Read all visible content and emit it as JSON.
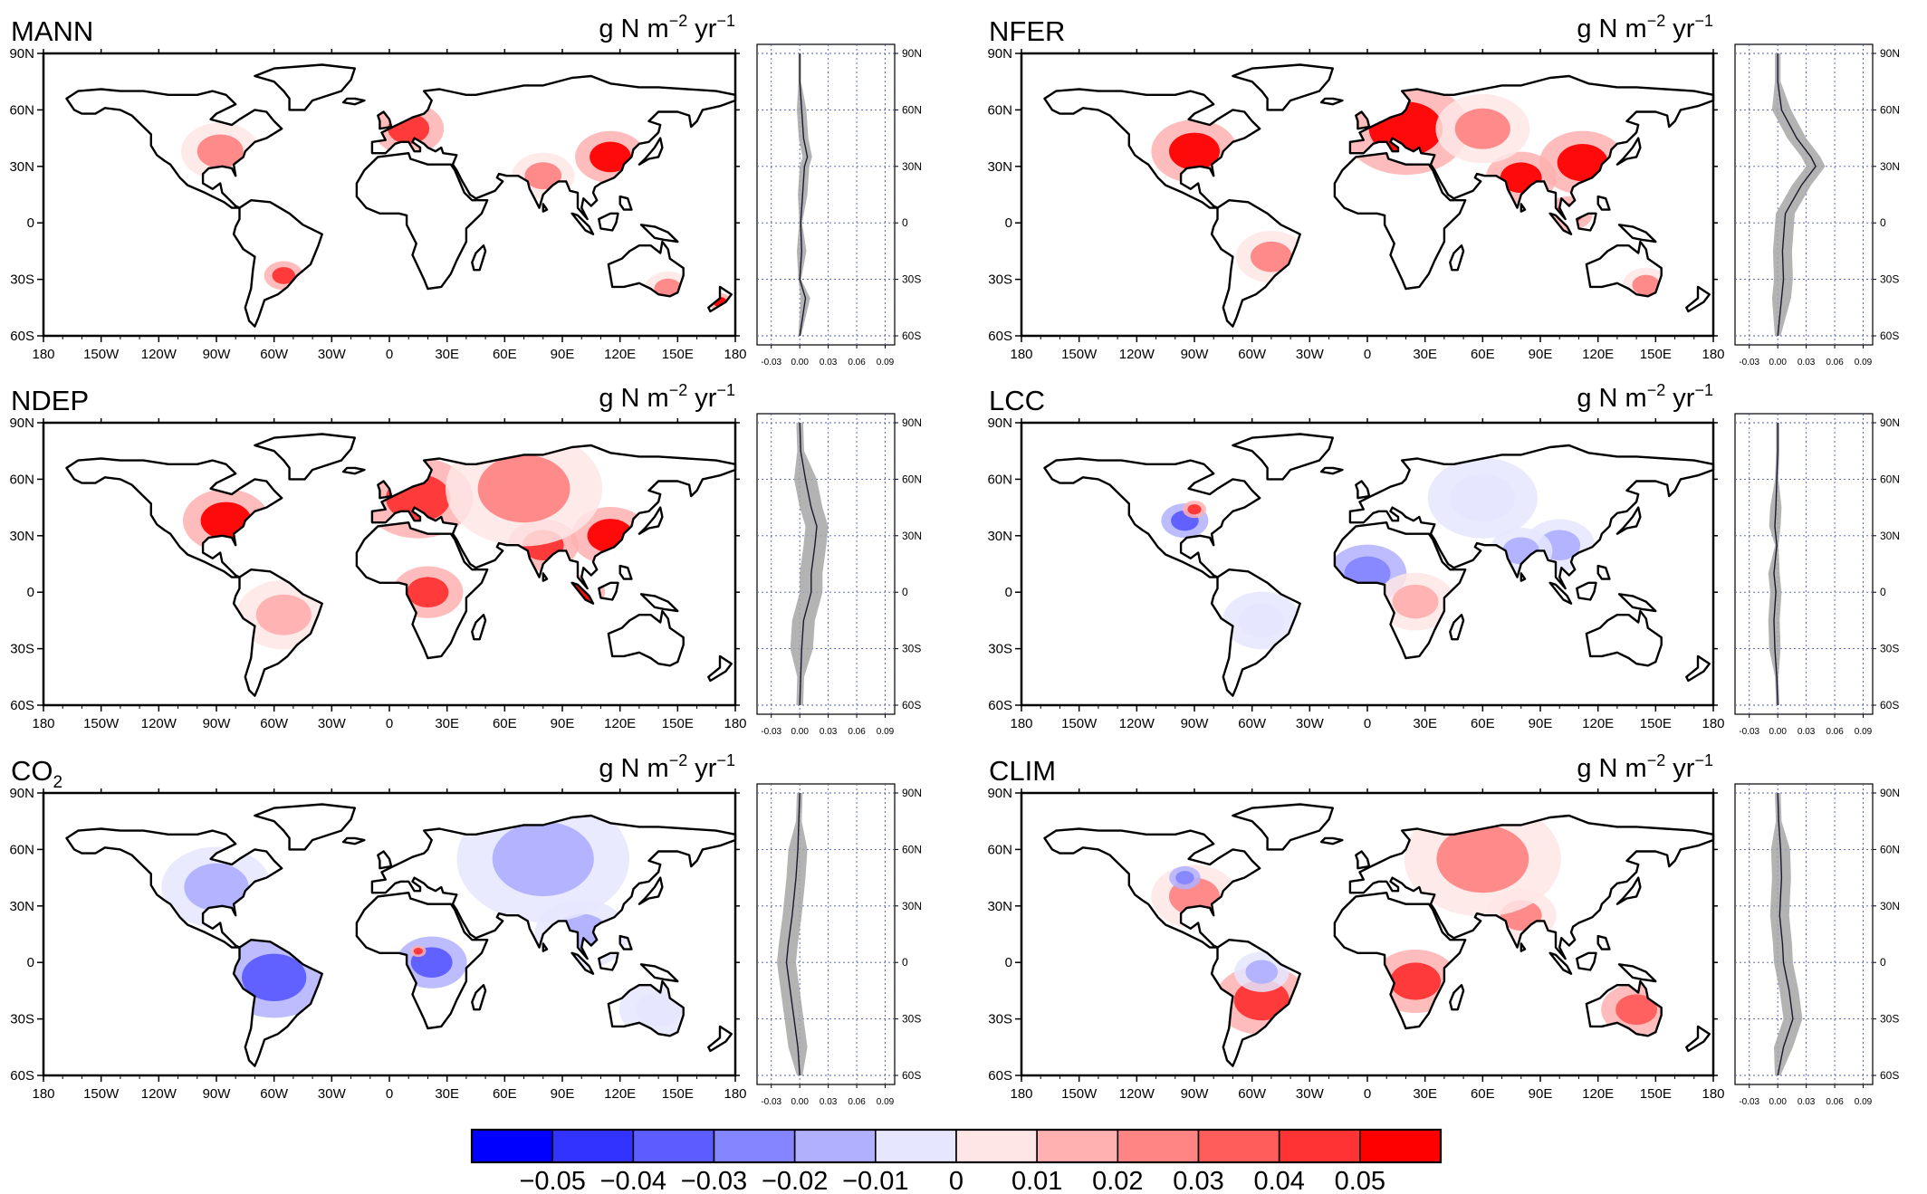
{
  "units": {
    "base": "g N m",
    "exp1": "−2",
    "mid": " yr",
    "exp2": "−1"
  },
  "axes": {
    "lon_ticks": [
      "180",
      "150W",
      "120W",
      "90W",
      "60W",
      "30W",
      "0",
      "30E",
      "60E",
      "90E",
      "120E",
      "150E",
      "180"
    ],
    "lat_ticks": [
      "90N",
      "60N",
      "30N",
      "0",
      "30S",
      "60S"
    ],
    "profile_x_ticks": [
      "-0.03",
      "0.00",
      "0.03",
      "0.06",
      "0.09"
    ],
    "profile_lat_ticks": [
      "90N",
      "60N",
      "30N",
      "0",
      "30S",
      "60S"
    ]
  },
  "colorbar": {
    "labels": [
      "−0.05",
      "−0.04",
      "−0.03",
      "−0.02",
      "−0.01",
      "0",
      "0.01",
      "0.02",
      "0.03",
      "0.04",
      "0.05"
    ],
    "colors": [
      "#0000ff",
      "#3333ff",
      "#5c5cff",
      "#8585ff",
      "#b0b0ff",
      "#e6e6ff",
      "#ffe6e6",
      "#ffb0b0",
      "#ff8585",
      "#ff5c5c",
      "#ff3333",
      "#ff0000"
    ]
  },
  "colors": {
    "increase": "#ff0000",
    "decrease": "#0000ff",
    "coast": "#000000",
    "profile_band": "#a6a6a6"
  },
  "chart_data": [
    {
      "type": "heatmap",
      "title": "MANN",
      "subscript": "",
      "xlim": [
        -180,
        180
      ],
      "ylim": [
        -60,
        90
      ],
      "hotspots": [
        {
          "lon": 115,
          "lat": 35,
          "value": 0.05,
          "spread": 9
        },
        {
          "lon": 10,
          "lat": 50,
          "value": 0.04,
          "spread": 9
        },
        {
          "lon": -88,
          "lat": 38,
          "value": 0.02,
          "spread": 10
        },
        {
          "lon": -55,
          "lat": -28,
          "value": 0.04,
          "spread": 5
        },
        {
          "lon": 80,
          "lat": 25,
          "value": 0.02,
          "spread": 8
        },
        {
          "lon": 145,
          "lat": -35,
          "value": 0.02,
          "spread": 6
        },
        {
          "lon": 172,
          "lat": -42,
          "value": 0.05,
          "spread": 3
        }
      ],
      "profile": {
        "x": [
          0.0,
          0.0,
          0.002,
          0.004,
          0.008,
          0.005,
          0.003,
          0.001,
          0.002,
          0.0,
          0.006,
          0.0
        ],
        "lat": [
          90,
          75,
          60,
          45,
          35,
          30,
          15,
          0,
          -15,
          -30,
          -40,
          -60
        ],
        "band_width": 0.005
      }
    },
    {
      "type": "heatmap",
      "title": "NFER",
      "subscript": "",
      "xlim": [
        -180,
        180
      ],
      "ylim": [
        -60,
        90
      ],
      "hotspots": [
        {
          "lon": 112,
          "lat": 32,
          "value": 0.05,
          "spread": 11
        },
        {
          "lon": 80,
          "lat": 24,
          "value": 0.05,
          "spread": 9
        },
        {
          "lon": 20,
          "lat": 50,
          "value": 0.05,
          "spread": 16
        },
        {
          "lon": -90,
          "lat": 38,
          "value": 0.05,
          "spread": 11
        },
        {
          "lon": 105,
          "lat": 5,
          "value": 0.04,
          "spread": 6
        },
        {
          "lon": -50,
          "lat": -18,
          "value": 0.02,
          "spread": 9
        },
        {
          "lon": 145,
          "lat": -33,
          "value": 0.02,
          "spread": 6
        },
        {
          "lon": 60,
          "lat": 50,
          "value": 0.02,
          "spread": 12
        }
      ],
      "profile": {
        "x": [
          0.0,
          0.0,
          0.004,
          0.02,
          0.035,
          0.04,
          0.025,
          0.008,
          0.005,
          0.006,
          0.004,
          0.0
        ],
        "lat": [
          90,
          75,
          60,
          45,
          35,
          30,
          20,
          5,
          -15,
          -30,
          -40,
          -60
        ],
        "band_width": 0.01
      }
    },
    {
      "type": "heatmap",
      "title": "NDEP",
      "subscript": "",
      "xlim": [
        -180,
        180
      ],
      "ylim": [
        -60,
        90
      ],
      "hotspots": [
        {
          "lon": -85,
          "lat": 38,
          "value": 0.05,
          "spread": 11
        },
        {
          "lon": 15,
          "lat": 50,
          "value": 0.04,
          "spread": 14
        },
        {
          "lon": 115,
          "lat": 30,
          "value": 0.05,
          "spread": 10
        },
        {
          "lon": 80,
          "lat": 25,
          "value": 0.04,
          "spread": 9
        },
        {
          "lon": 100,
          "lat": 0,
          "value": 0.05,
          "spread": 6
        },
        {
          "lon": 20,
          "lat": 0,
          "value": 0.04,
          "spread": 9
        },
        {
          "lon": 70,
          "lat": 55,
          "value": 0.02,
          "spread": 20
        },
        {
          "lon": -55,
          "lat": -12,
          "value": 0.01,
          "spread": 12
        }
      ],
      "profile": {
        "x": [
          0.0,
          0.001,
          0.006,
          0.012,
          0.018,
          0.016,
          0.012,
          0.012,
          0.004,
          0.002,
          0.001,
          0.0
        ],
        "lat": [
          90,
          75,
          60,
          45,
          35,
          25,
          10,
          0,
          -15,
          -30,
          -45,
          -60
        ],
        "band_width": 0.012
      }
    },
    {
      "type": "heatmap",
      "title": "LCC",
      "subscript": "",
      "xlim": [
        -180,
        180
      ],
      "ylim": [
        -60,
        90
      ],
      "hotspots": [
        {
          "lon": -95,
          "lat": 38,
          "value": -0.04,
          "spread": 6
        },
        {
          "lon": -90,
          "lat": 44,
          "value": 0.04,
          "spread": 3
        },
        {
          "lon": 0,
          "lat": 10,
          "value": -0.03,
          "spread": 10
        },
        {
          "lon": 100,
          "lat": 25,
          "value": -0.02,
          "spread": 9
        },
        {
          "lon": 80,
          "lat": 22,
          "value": -0.02,
          "spread": 8
        },
        {
          "lon": -55,
          "lat": -15,
          "value": -0.01,
          "spread": 10
        },
        {
          "lon": 60,
          "lat": 50,
          "value": -0.01,
          "spread": 14
        },
        {
          "lon": 25,
          "lat": -5,
          "value": 0.01,
          "spread": 10
        }
      ],
      "profile": {
        "x": [
          0.0,
          0.0,
          -0.001,
          -0.002,
          -0.003,
          -0.001,
          -0.004,
          -0.002,
          -0.004,
          -0.003,
          -0.001,
          0.0
        ],
        "lat": [
          90,
          75,
          60,
          45,
          35,
          25,
          10,
          0,
          -15,
          -30,
          -45,
          -60
        ],
        "band_width": 0.006
      }
    },
    {
      "type": "heatmap",
      "title": "CO",
      "subscript": "2",
      "xlim": [
        -180,
        180
      ],
      "ylim": [
        -60,
        90
      ],
      "hotspots": [
        {
          "lon": -60,
          "lat": -8,
          "value": -0.04,
          "spread": 14
        },
        {
          "lon": 22,
          "lat": 0,
          "value": -0.04,
          "spread": 9
        },
        {
          "lon": 100,
          "lat": 15,
          "value": -0.02,
          "spread": 12
        },
        {
          "lon": 80,
          "lat": 55,
          "value": -0.015,
          "spread": 22
        },
        {
          "lon": -90,
          "lat": 40,
          "value": -0.015,
          "spread": 14
        },
        {
          "lon": 140,
          "lat": -25,
          "value": -0.01,
          "spread": 10
        },
        {
          "lon": 15,
          "lat": 6,
          "value": 0.04,
          "spread": 2
        }
      ],
      "profile": {
        "x": [
          0.0,
          -0.001,
          -0.002,
          -0.004,
          -0.006,
          -0.008,
          -0.012,
          -0.014,
          -0.01,
          -0.006,
          -0.002,
          0.0
        ],
        "lat": [
          90,
          75,
          60,
          45,
          35,
          25,
          10,
          0,
          -15,
          -30,
          -45,
          -60
        ],
        "band_width": 0.01
      }
    },
    {
      "type": "heatmap",
      "title": "CLIM",
      "subscript": "",
      "xlim": [
        -180,
        180
      ],
      "ylim": [
        -60,
        90
      ],
      "hotspots": [
        {
          "lon": -55,
          "lat": -20,
          "value": 0.04,
          "spread": 12
        },
        {
          "lon": 25,
          "lat": -10,
          "value": 0.04,
          "spread": 11
        },
        {
          "lon": 140,
          "lat": -25,
          "value": 0.03,
          "spread": 9
        },
        {
          "lon": -90,
          "lat": 35,
          "value": 0.02,
          "spread": 11
        },
        {
          "lon": -95,
          "lat": 45,
          "value": -0.03,
          "spread": 4
        },
        {
          "lon": 80,
          "lat": 25,
          "value": 0.02,
          "spread": 9
        },
        {
          "lon": 60,
          "lat": 55,
          "value": 0.02,
          "spread": 20
        },
        {
          "lon": -55,
          "lat": -5,
          "value": -0.02,
          "spread": 7
        }
      ],
      "profile": {
        "x": [
          0.0,
          0.001,
          0.003,
          0.004,
          0.003,
          0.002,
          0.005,
          0.006,
          0.012,
          0.016,
          0.006,
          0.0
        ],
        "lat": [
          90,
          75,
          60,
          45,
          35,
          25,
          10,
          0,
          -15,
          -30,
          -45,
          -60
        ],
        "band_width": 0.01
      }
    }
  ]
}
